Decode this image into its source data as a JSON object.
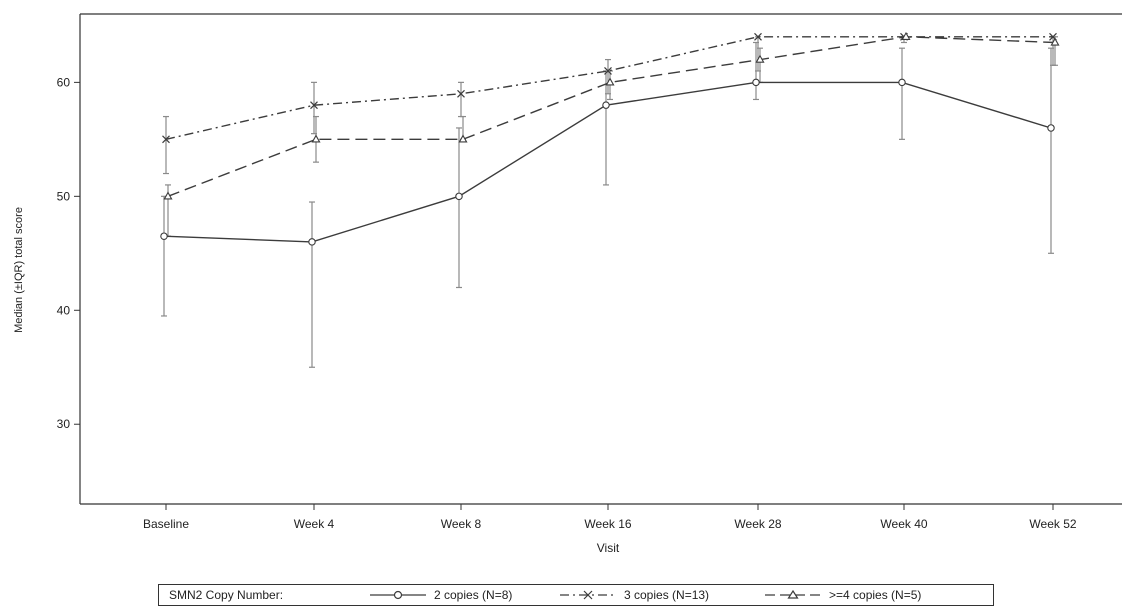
{
  "chart_data": {
    "type": "line",
    "title": "",
    "xlabel": "Visit",
    "ylabel": "Median (±IQR) total score",
    "categories": [
      "Baseline",
      "Week 4",
      "Week 8",
      "Week 16",
      "Week 28",
      "Week 40",
      "Week 52"
    ],
    "yticks": [
      30,
      40,
      50,
      60
    ],
    "ylim": [
      23,
      66
    ],
    "grid": false,
    "legend": {
      "position": "bottom",
      "title": "SMN2 Copy Number:"
    },
    "series": [
      {
        "name": "2 copies (N=8)",
        "marker": "circle",
        "dash": "solid",
        "color": "#3c3c3c",
        "values": [
          46.5,
          46,
          50,
          58,
          60,
          60,
          56
        ],
        "lower": [
          39.5,
          35,
          42,
          51,
          58.5,
          55,
          45
        ],
        "upper": [
          50,
          49.5,
          56,
          61,
          63.5,
          63,
          63
        ]
      },
      {
        "name": "3 copies (N=13)",
        "marker": "x",
        "dash": "dashdot",
        "color": "#3c3c3c",
        "values": [
          55,
          58,
          59,
          61,
          64,
          64,
          64
        ],
        "lower": [
          52,
          55.5,
          57,
          59,
          61,
          63.5,
          61.5
        ],
        "upper": [
          57,
          60,
          60,
          62,
          64,
          64,
          64
        ]
      },
      {
        "name": ">=4 copies (N=5)",
        "marker": "triangle",
        "dash": "dashed",
        "color": "#3c3c3c",
        "values": [
          50,
          55,
          55,
          60,
          62,
          64,
          63.5
        ],
        "lower": [
          46.5,
          53,
          55,
          58.5,
          60,
          64,
          61.5
        ],
        "upper": [
          51,
          57,
          57,
          61,
          63,
          64,
          64
        ]
      }
    ]
  }
}
